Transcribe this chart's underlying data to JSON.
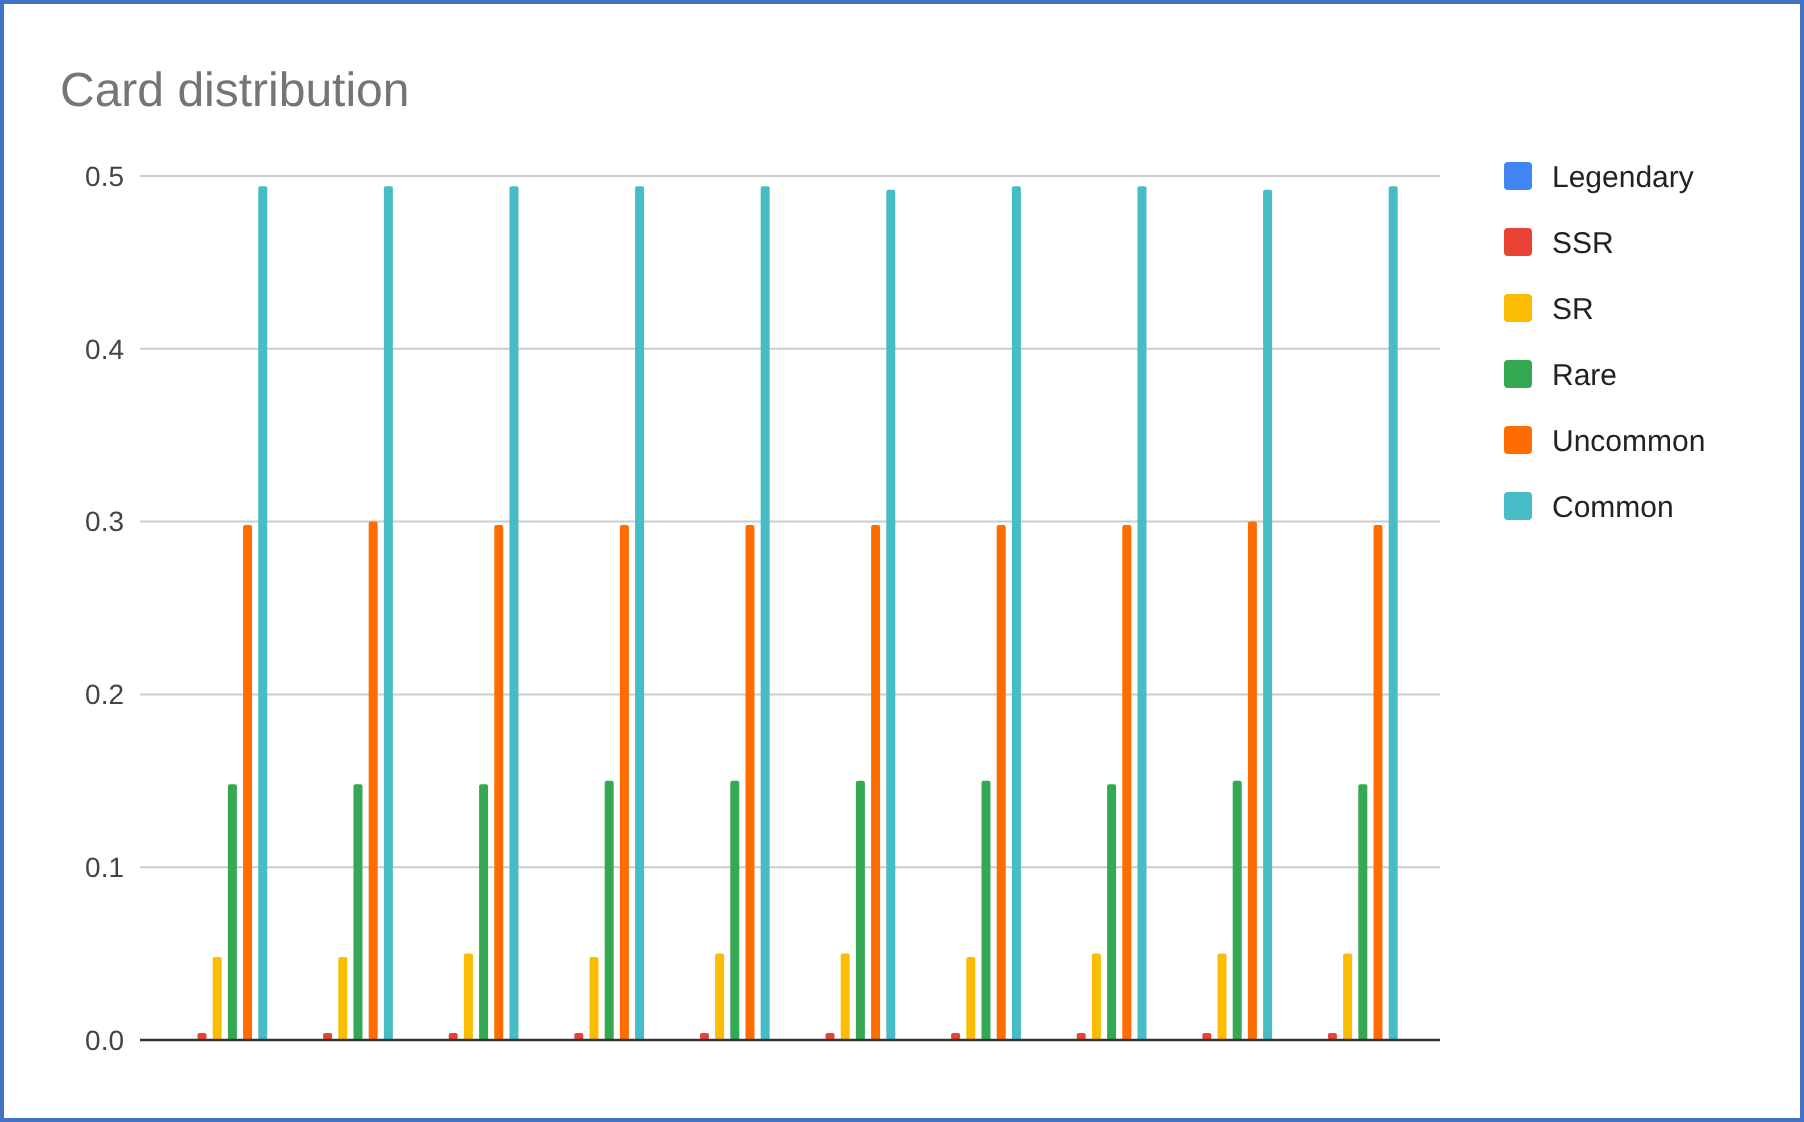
{
  "chart_data": {
    "type": "bar",
    "title": "Card distribution",
    "categories": [
      null,
      null,
      null,
      null,
      null,
      null,
      null,
      null,
      null,
      null
    ],
    "series": [
      {
        "name": "Legendary",
        "color": "#4285f4",
        "values": [
          null,
          null,
          null,
          null,
          null,
          null,
          null,
          null,
          null,
          null
        ]
      },
      {
        "name": "SSR",
        "color": "#ea4335",
        "values": [
          0.004,
          0.004,
          0.004,
          0.004,
          0.004,
          0.004,
          0.004,
          0.004,
          0.004,
          0.004
        ]
      },
      {
        "name": "SR",
        "color": "#fbbc04",
        "values": [
          0.048,
          0.048,
          0.05,
          0.048,
          0.05,
          0.05,
          0.048,
          0.05,
          0.05,
          0.05
        ]
      },
      {
        "name": "Rare",
        "color": "#34a853",
        "values": [
          0.148,
          0.148,
          0.148,
          0.15,
          0.15,
          0.15,
          0.15,
          0.148,
          0.15,
          0.148
        ]
      },
      {
        "name": "Uncommon",
        "color": "#ff6d01",
        "values": [
          0.298,
          0.3,
          0.298,
          0.298,
          0.298,
          0.298,
          0.298,
          0.298,
          0.3,
          0.298
        ]
      },
      {
        "name": "Common",
        "color": "#46bdc6",
        "values": [
          0.494,
          0.494,
          0.494,
          0.494,
          0.494,
          0.492,
          0.494,
          0.494,
          0.492,
          0.494
        ]
      }
    ],
    "ylim": [
      0,
      0.5
    ],
    "yticks": [
      {
        "value": 0,
        "label": "0.0"
      },
      0.1,
      0.2,
      0.3,
      0.4,
      0.5
    ],
    "grid": "y",
    "legend": "right"
  }
}
